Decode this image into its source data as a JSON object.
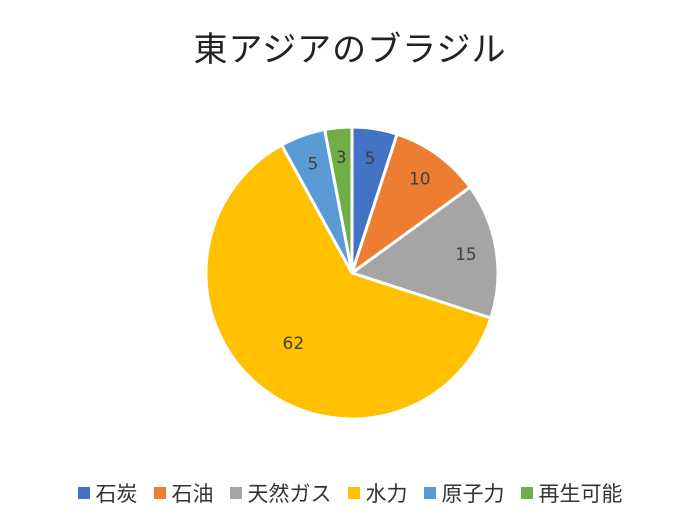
{
  "chart_data": {
    "type": "pie",
    "title": "東アジアのブラジル",
    "categories": [
      "石炭",
      "石油",
      "天然ガス",
      "水力",
      "原子力",
      "再生可能"
    ],
    "values": [
      5,
      10,
      15,
      62,
      5,
      3
    ],
    "colors": [
      "#4472C4",
      "#ED7D31",
      "#A5A5A5",
      "#FFC000",
      "#5B9BD5",
      "#70AD47"
    ],
    "data_labels": [
      "5",
      "10",
      "15",
      "62",
      "5",
      "3"
    ],
    "legend_position": "bottom"
  }
}
